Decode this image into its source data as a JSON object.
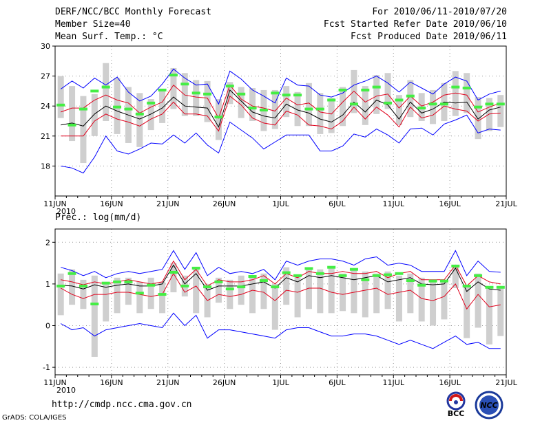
{
  "header": {
    "title": "DERF/NCC/BCC Monthly Forecast",
    "member_size": "Member Size=40",
    "variable": "Mean Surf. Temp.: °C",
    "period": "For 2010/06/11-2010/07/20",
    "fcst_started": "Fcst Started Refer Date 2010/06/10",
    "fcst_produced": "Fcst Produced Date 2010/06/11"
  },
  "lower_title": "Prec.: log(mm/d)",
  "footer": {
    "url": "http://cmdp.ncc.cma.gov.cn",
    "credit": "GrADS: COLA/IGES"
  },
  "logos": {
    "bcc": "BCC",
    "ncc": "NCC"
  },
  "colors": {
    "max_min": "#0000ff",
    "spread": "#e0001b",
    "ensemble_mean": "#000000",
    "box": "#cfcfcf",
    "member_marker": "#44ee44"
  },
  "chart_data": [
    {
      "type": "line",
      "title": "Mean Surf. Temp.: °C",
      "days": 40,
      "ylim": [
        15,
        30
      ],
      "yticks": [
        18,
        21,
        24,
        27,
        30
      ],
      "xticks": [
        {
          "day": 0,
          "label": "11JUN"
        },
        {
          "day": 5,
          "label": "16JUN"
        },
        {
          "day": 10,
          "label": "21JUN"
        },
        {
          "day": 15,
          "label": "26JUN"
        },
        {
          "day": 20,
          "label": "1JUL"
        },
        {
          "day": 25,
          "label": "6JUL"
        },
        {
          "day": 30,
          "label": "11JUL"
        },
        {
          "day": 35,
          "label": "16JUL"
        },
        {
          "day": 40,
          "label": "21JUL"
        }
      ],
      "year_label": "2010",
      "series": [
        {
          "name": "max",
          "color": "#0000ff",
          "values": [
            25.7,
            26.5,
            25.8,
            26.8,
            26.1,
            26.9,
            25.4,
            24.5,
            25.0,
            26.2,
            27.7,
            26.8,
            26.1,
            26.2,
            24.2,
            27.5,
            26.7,
            25.6,
            25.0,
            24.3,
            26.8,
            26.1,
            26.0,
            25.1,
            24.9,
            25.3,
            26.1,
            26.5,
            27.0,
            26.3,
            25.4,
            26.4,
            25.8,
            25.2,
            26.2,
            26.9,
            26.5,
            24.6,
            25.2,
            25.5
          ]
        },
        {
          "name": "upper",
          "color": "#e0001b",
          "values": [
            23.4,
            23.8,
            23.8,
            24.6,
            25.1,
            24.6,
            24.3,
            23.3,
            23.9,
            24.4,
            26.1,
            25.1,
            24.9,
            24.8,
            22.8,
            26.1,
            24.7,
            24.0,
            23.8,
            23.5,
            24.8,
            24.1,
            24.3,
            23.4,
            23.2,
            24.4,
            25.5,
            24.4,
            25.0,
            25.2,
            23.8,
            25.0,
            24.0,
            24.4,
            25.1,
            25.3,
            25.1,
            23.4,
            23.9,
            24.3
          ]
        },
        {
          "name": "mean",
          "color": "#000000",
          "values": [
            22.1,
            22.3,
            22.0,
            23.2,
            24.0,
            23.5,
            23.1,
            22.7,
            23.2,
            23.8,
            24.9,
            24.0,
            23.9,
            23.8,
            21.9,
            25.6,
            24.5,
            23.4,
            23.0,
            22.8,
            24.2,
            23.6,
            23.3,
            22.7,
            22.4,
            23.1,
            24.4,
            23.4,
            24.6,
            24.1,
            22.7,
            24.4,
            23.3,
            23.7,
            24.4,
            24.3,
            24.4,
            22.7,
            23.6,
            23.9
          ]
        },
        {
          "name": "lower",
          "color": "#e0001b",
          "values": [
            21.0,
            21.0,
            21.0,
            22.5,
            23.2,
            22.7,
            22.4,
            22.0,
            22.7,
            23.2,
            24.4,
            23.2,
            23.2,
            23.0,
            21.5,
            25.0,
            24.1,
            22.8,
            22.3,
            22.1,
            23.5,
            23.1,
            22.1,
            22.0,
            21.7,
            22.5,
            23.9,
            22.7,
            23.9,
            23.1,
            21.9,
            23.9,
            22.8,
            23.1,
            24.0,
            23.7,
            23.5,
            22.5,
            23.2,
            23.3
          ]
        },
        {
          "name": "min",
          "color": "#0000ff",
          "values": [
            18.0,
            17.8,
            17.3,
            18.9,
            21.0,
            19.5,
            19.2,
            19.7,
            20.3,
            20.2,
            21.1,
            20.3,
            21.3,
            20.1,
            19.3,
            22.4,
            21.6,
            20.8,
            19.7,
            20.4,
            21.1,
            21.1,
            21.1,
            19.5,
            19.5,
            20.0,
            21.2,
            20.9,
            21.7,
            21.1,
            20.3,
            21.7,
            21.8,
            21.1,
            22.2,
            22.6,
            23.1,
            21.3,
            21.7,
            21.6
          ]
        }
      ],
      "boxes": [
        [
          22.8,
          27.0
        ],
        [
          20.5,
          26.0
        ],
        [
          18.3,
          25.0
        ],
        [
          21.0,
          25.2
        ],
        [
          22.5,
          28.3
        ],
        [
          21.2,
          26.8
        ],
        [
          20.3,
          25.9
        ],
        [
          19.9,
          25.3
        ],
        [
          21.6,
          24.7
        ],
        [
          22.3,
          25.7
        ],
        [
          23.7,
          27.8
        ],
        [
          23.0,
          27.3
        ],
        [
          23.0,
          26.6
        ],
        [
          22.4,
          26.5
        ],
        [
          20.6,
          24.7
        ],
        [
          24.2,
          26.4
        ],
        [
          22.8,
          25.9
        ],
        [
          22.5,
          25.8
        ],
        [
          21.5,
          25.6
        ],
        [
          21.7,
          25.6
        ],
        [
          22.9,
          26.0
        ],
        [
          22.0,
          25.4
        ],
        [
          22.0,
          26.3
        ],
        [
          21.2,
          25.3
        ],
        [
          21.3,
          24.8
        ],
        [
          22.0,
          25.9
        ],
        [
          23.3,
          27.6
        ],
        [
          22.1,
          26.0
        ],
        [
          23.2,
          27.1
        ],
        [
          23.7,
          27.3
        ],
        [
          22.1,
          25.1
        ],
        [
          22.9,
          26.6
        ],
        [
          22.5,
          25.3
        ],
        [
          22.2,
          25.6
        ],
        [
          22.5,
          26.3
        ],
        [
          23.0,
          27.5
        ],
        [
          23.3,
          27.3
        ],
        [
          20.7,
          24.9
        ],
        [
          21.5,
          24.8
        ],
        [
          21.9,
          25.1
        ]
      ],
      "markers": [
        24.1,
        22.1,
        23.7,
        25.5,
        25.9,
        23.9,
        23.7,
        23.2,
        24.3,
        25.6,
        27.1,
        26.2,
        25.3,
        25.2,
        22.9,
        26.0,
        25.2,
        23.8,
        23.6,
        25.3,
        25.1,
        25.1,
        23.7,
        23.7,
        24.6,
        25.6,
        24.2,
        25.6,
        25.9,
        24.3,
        24.6,
        25.0,
        23.8,
        24.2,
        24.2,
        25.9,
        25.8,
        23.9,
        24.2,
        24.2
      ]
    },
    {
      "type": "line",
      "title": "Prec.: log(mm/d)",
      "days": 40,
      "ylim": [
        -1.3,
        2.3
      ],
      "yticks": [
        -1,
        0,
        1,
        2
      ],
      "xticks": [
        {
          "day": 0,
          "label": "11JUN"
        },
        {
          "day": 5,
          "label": "16JUN"
        },
        {
          "day": 10,
          "label": "21JUN"
        },
        {
          "day": 15,
          "label": "26JUN"
        },
        {
          "day": 20,
          "label": "1JUL"
        },
        {
          "day": 25,
          "label": "6JUL"
        },
        {
          "day": 30,
          "label": "11JUL"
        },
        {
          "day": 35,
          "label": "16JUL"
        },
        {
          "day": 40,
          "label": "21JUL"
        }
      ],
      "year_label": "2010",
      "series": [
        {
          "name": "max",
          "color": "#0000ff",
          "values": [
            1.4,
            1.32,
            1.2,
            1.3,
            1.15,
            1.25,
            1.3,
            1.25,
            1.3,
            1.35,
            1.8,
            1.35,
            1.75,
            1.2,
            1.4,
            1.25,
            1.3,
            1.25,
            1.35,
            1.1,
            1.55,
            1.45,
            1.55,
            1.6,
            1.6,
            1.55,
            1.45,
            1.6,
            1.65,
            1.45,
            1.5,
            1.45,
            1.3,
            1.3,
            1.3,
            1.8,
            1.2,
            1.55,
            1.3,
            1.28
          ]
        },
        {
          "name": "upper",
          "color": "#e0001b",
          "values": [
            1.1,
            1.05,
            0.98,
            1.05,
            1.0,
            1.05,
            1.1,
            1.05,
            1.0,
            1.05,
            1.55,
            1.1,
            1.35,
            0.95,
            1.1,
            1.05,
            1.05,
            1.1,
            1.2,
            1.0,
            1.25,
            1.15,
            1.3,
            1.25,
            1.25,
            1.3,
            1.25,
            1.25,
            1.3,
            1.15,
            1.25,
            1.3,
            1.1,
            1.1,
            1.1,
            1.45,
            0.95,
            1.2,
            1.05,
            1.0
          ]
        },
        {
          "name": "mean",
          "color": "#000000",
          "values": [
            0.97,
            0.95,
            0.88,
            0.98,
            0.92,
            0.97,
            1.0,
            0.95,
            0.95,
            1.0,
            1.45,
            1.0,
            1.25,
            0.85,
            0.95,
            0.95,
            0.95,
            1.0,
            1.05,
            0.9,
            1.15,
            1.05,
            1.2,
            1.15,
            1.2,
            1.15,
            1.1,
            1.15,
            1.2,
            1.05,
            1.1,
            1.15,
            1.0,
            0.98,
            1.0,
            1.38,
            0.82,
            1.05,
            0.88,
            0.85
          ]
        },
        {
          "name": "lower",
          "color": "#e0001b",
          "values": [
            0.9,
            0.75,
            0.65,
            0.75,
            0.75,
            0.8,
            0.8,
            0.75,
            0.7,
            0.75,
            1.25,
            0.8,
            0.95,
            0.6,
            0.75,
            0.7,
            0.75,
            0.85,
            0.8,
            0.6,
            0.85,
            0.8,
            0.9,
            0.9,
            0.8,
            0.75,
            0.8,
            0.85,
            0.9,
            0.75,
            0.8,
            0.85,
            0.65,
            0.6,
            0.7,
            1.0,
            0.4,
            0.75,
            0.45,
            0.5
          ]
        },
        {
          "name": "min",
          "color": "#0000ff",
          "values": [
            0.05,
            -0.1,
            -0.05,
            -0.25,
            -0.1,
            -0.05,
            0.0,
            0.05,
            0.0,
            -0.05,
            0.3,
            0.0,
            0.25,
            -0.3,
            -0.1,
            -0.1,
            -0.15,
            -0.2,
            -0.25,
            -0.3,
            -0.1,
            -0.05,
            -0.05,
            -0.15,
            -0.25,
            -0.25,
            -0.2,
            -0.2,
            -0.25,
            -0.35,
            -0.45,
            -0.35,
            -0.45,
            -0.55,
            -0.4,
            -0.25,
            -0.45,
            -0.4,
            -0.55,
            -0.55
          ]
        }
      ],
      "boxes": [
        [
          0.25,
          1.25
        ],
        [
          0.5,
          1.35
        ],
        [
          0.4,
          1.1
        ],
        [
          -0.75,
          1.2
        ],
        [
          0.1,
          1.05
        ],
        [
          0.3,
          1.15
        ],
        [
          0.5,
          1.15
        ],
        [
          0.3,
          1.05
        ],
        [
          0.4,
          1.15
        ],
        [
          0.3,
          1.05
        ],
        [
          0.8,
          1.5
        ],
        [
          0.7,
          1.2
        ],
        [
          0.3,
          1.35
        ],
        [
          0.2,
          1.0
        ],
        [
          0.55,
          1.15
        ],
        [
          0.4,
          1.1
        ],
        [
          0.5,
          1.2
        ],
        [
          0.3,
          1.15
        ],
        [
          0.4,
          1.25
        ],
        [
          -0.1,
          1.0
        ],
        [
          0.5,
          1.4
        ],
        [
          0.2,
          1.2
        ],
        [
          0.4,
          1.4
        ],
        [
          0.3,
          1.35
        ],
        [
          0.3,
          1.4
        ],
        [
          0.35,
          1.25
        ],
        [
          0.3,
          1.35
        ],
        [
          0.2,
          1.3
        ],
        [
          0.3,
          1.25
        ],
        [
          0.4,
          1.3
        ],
        [
          0.1,
          1.2
        ],
        [
          0.3,
          1.25
        ],
        [
          0.1,
          1.15
        ],
        [
          0.0,
          1.1
        ],
        [
          0.15,
          1.1
        ],
        [
          0.9,
          1.45
        ],
        [
          -0.3,
          0.95
        ],
        [
          -0.05,
          1.25
        ],
        [
          -0.45,
          0.95
        ],
        [
          -0.25,
          0.95
        ]
      ],
      "markers": [
        0.95,
        1.25,
        0.95,
        0.52,
        1.02,
        1.05,
        1.05,
        0.78,
        0.97,
        0.75,
        1.28,
        0.95,
        1.38,
        0.93,
        1.05,
        0.88,
        0.93,
        1.18,
        1.08,
        0.93,
        1.27,
        1.2,
        1.37,
        1.25,
        1.4,
        1.2,
        1.35,
        1.1,
        1.2,
        1.22,
        1.25,
        1.08,
        0.97,
        1.07,
        1.07,
        1.43,
        0.95,
        1.2,
        0.92,
        0.92
      ]
    }
  ]
}
